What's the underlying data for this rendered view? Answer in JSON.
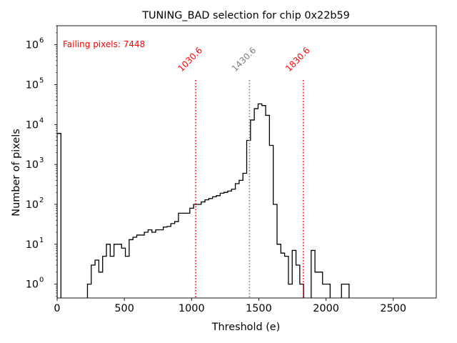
{
  "chart_data": {
    "type": "histogram",
    "title": "TUNING_BAD selection for chip 0x22b59",
    "xlabel": "Threshold (e)",
    "ylabel": "Number of pixels",
    "xlim": [
      0,
      2820
    ],
    "ylim": [
      0.45,
      3000000
    ],
    "yscale": "log",
    "x_ticks": [
      0,
      500,
      1000,
      1500,
      2000,
      2500
    ],
    "x_tick_labels": [
      "0",
      "500",
      "1000",
      "1500",
      "2000",
      "2500"
    ],
    "y_ticks": [
      1,
      10,
      100,
      1000,
      10000,
      100000,
      1000000
    ],
    "y_tick_labels": [
      {
        "base": "10",
        "exp": "0"
      },
      {
        "base": "10",
        "exp": "1"
      },
      {
        "base": "10",
        "exp": "2"
      },
      {
        "base": "10",
        "exp": "3"
      },
      {
        "base": "10",
        "exp": "4"
      },
      {
        "base": "10",
        "exp": "5"
      },
      {
        "base": "10",
        "exp": "6"
      }
    ],
    "bin_width": 28.2,
    "bins": [
      [
        0,
        6000
      ],
      [
        28.2,
        0
      ],
      [
        56.4,
        0
      ],
      [
        84.6,
        0
      ],
      [
        112.8,
        0
      ],
      [
        141,
        0
      ],
      [
        169.2,
        0
      ],
      [
        197.4,
        0
      ],
      [
        225.6,
        1
      ],
      [
        253.8,
        3
      ],
      [
        282,
        4
      ],
      [
        310.2,
        2
      ],
      [
        338.4,
        5
      ],
      [
        366.6,
        10
      ],
      [
        394.8,
        5
      ],
      [
        423,
        10
      ],
      [
        451.2,
        10
      ],
      [
        479.4,
        8
      ],
      [
        507.6,
        5
      ],
      [
        535.8,
        13
      ],
      [
        564,
        15
      ],
      [
        592.2,
        17
      ],
      [
        620.4,
        17
      ],
      [
        648.6,
        20
      ],
      [
        676.8,
        23
      ],
      [
        705,
        20
      ],
      [
        733.2,
        23
      ],
      [
        761.4,
        23
      ],
      [
        789.6,
        27
      ],
      [
        817.8,
        28
      ],
      [
        846,
        33
      ],
      [
        874.2,
        37
      ],
      [
        902.4,
        60
      ],
      [
        930.6,
        60
      ],
      [
        958.8,
        60
      ],
      [
        987,
        80
      ],
      [
        1015.2,
        100
      ],
      [
        1043.4,
        100
      ],
      [
        1071.6,
        115
      ],
      [
        1099.8,
        130
      ],
      [
        1128,
        140
      ],
      [
        1156.2,
        155
      ],
      [
        1184.4,
        165
      ],
      [
        1212.6,
        190
      ],
      [
        1240.8,
        200
      ],
      [
        1269,
        215
      ],
      [
        1297.2,
        240
      ],
      [
        1325.4,
        330
      ],
      [
        1353.6,
        400
      ],
      [
        1381.8,
        600
      ],
      [
        1410,
        4000
      ],
      [
        1438.2,
        13000
      ],
      [
        1466.4,
        25000
      ],
      [
        1494.6,
        33000
      ],
      [
        1522.8,
        30000
      ],
      [
        1551,
        17000
      ],
      [
        1579.2,
        3000
      ],
      [
        1607.4,
        100
      ],
      [
        1635.6,
        10
      ],
      [
        1663.8,
        6
      ],
      [
        1692,
        5
      ],
      [
        1720.2,
        1
      ],
      [
        1748.4,
        7
      ],
      [
        1776.6,
        3
      ],
      [
        1804.8,
        1
      ],
      [
        1833,
        0
      ],
      [
        1861.2,
        0
      ],
      [
        1889.4,
        7
      ],
      [
        1917.6,
        2
      ],
      [
        1945.8,
        2
      ],
      [
        1974,
        1
      ],
      [
        2002.2,
        1
      ],
      [
        2030.4,
        0
      ],
      [
        2058.6,
        0
      ],
      [
        2086.8,
        0
      ],
      [
        2115,
        1
      ],
      [
        2143.2,
        1
      ],
      [
        2171.4,
        0
      ],
      [
        2199.6,
        0
      ]
    ],
    "vlines": [
      {
        "x": 1030.6,
        "label": "1030.6",
        "color": "#ff0000"
      },
      {
        "x": 1430.6,
        "label": "1430.6",
        "color": "#808080"
      },
      {
        "x": 1830.6,
        "label": "1830.6",
        "color": "#ff0000"
      }
    ],
    "annotation": {
      "text": "Failing pixels: 7448",
      "color": "#ff0000"
    },
    "line_color": "#000000"
  }
}
